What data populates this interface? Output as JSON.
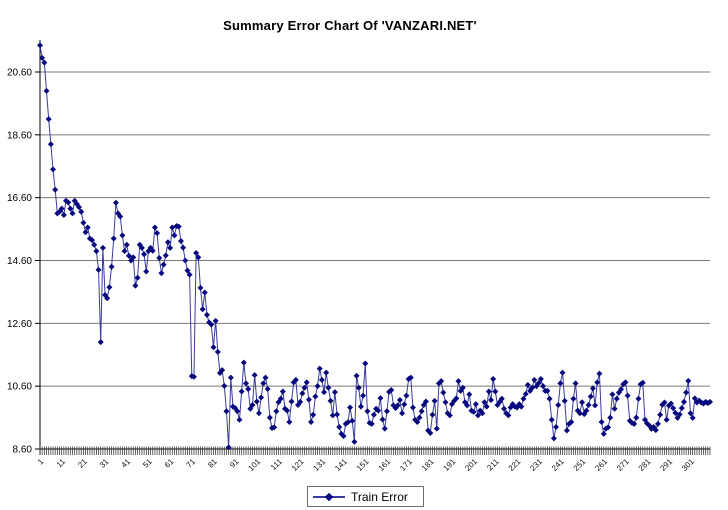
{
  "colors": {
    "background": "#ffffff",
    "series_line": "#3b3b9e",
    "series_marker": "#08087e",
    "gridline": "#7a7a7a",
    "axis": "#000000",
    "tick": "#333333",
    "text": "#000000",
    "legend_border": "#6e6e6e"
  },
  "chart_data": {
    "type": "line",
    "title": "Summary Error Chart Of 'VANZARI.NET'",
    "xlabel": "",
    "ylabel": "",
    "x_start": 1,
    "x_end": 310,
    "x_label_interval": 10,
    "x_labeled_ticks": [
      "1",
      "11",
      "21",
      "31",
      "41",
      "51",
      "61",
      "71",
      "81",
      "91",
      "101",
      "111",
      "121",
      "131",
      "141",
      "151",
      "161",
      "171",
      "181",
      "191",
      "201",
      "211",
      "221",
      "231",
      "241",
      "251",
      "261",
      "271",
      "281",
      "291",
      "301"
    ],
    "ylim": [
      8.6,
      21.6
    ],
    "y_gridlines": [
      8.6,
      10.6,
      12.6,
      14.6,
      16.6,
      18.6,
      20.6
    ],
    "grid": "horizontal-only",
    "legend_position": "bottom-center",
    "series": [
      {
        "name": "Train Error",
        "marker": "diamond",
        "line_color": "#3b3b9e",
        "marker_color": "#08087e",
        "values": [
          21.45,
          21.05,
          20.9,
          20.0,
          19.1,
          18.3,
          17.5,
          16.85,
          16.1,
          16.15,
          16.25,
          16.05,
          16.5,
          16.45,
          16.25,
          16.1,
          16.5,
          16.4,
          16.3,
          16.15,
          15.8,
          15.5,
          15.65,
          15.3,
          15.25,
          15.1,
          14.9,
          14.3,
          12.0,
          15.0,
          13.5,
          13.4,
          13.75,
          14.4,
          15.3,
          16.44,
          16.1,
          16.0,
          15.4,
          14.9,
          15.1,
          14.75,
          14.6,
          14.7,
          13.8,
          14.05,
          15.1,
          15.0,
          14.8,
          14.25,
          14.9,
          15.0,
          14.91,
          15.65,
          15.47,
          14.68,
          14.2,
          14.47,
          14.76,
          15.18,
          15.0,
          15.65,
          15.4,
          15.7,
          15.68,
          15.22,
          15.01,
          14.6,
          14.28,
          14.15,
          10.92,
          10.9,
          14.84,
          14.7,
          13.73,
          13.05,
          13.58,
          12.87,
          12.63,
          12.56,
          11.84,
          12.68,
          11.69,
          11.02,
          11.11,
          10.61,
          9.8,
          8.65,
          10.87,
          9.95,
          9.9,
          9.8,
          9.53,
          10.43,
          11.35,
          10.69,
          10.51,
          9.88,
          10.0,
          10.95,
          10.11,
          9.74,
          10.24,
          10.69,
          10.87,
          10.51,
          9.6,
          9.27,
          9.29,
          9.8,
          10.09,
          10.2,
          10.43,
          9.88,
          9.82,
          9.46,
          10.11,
          10.72,
          10.8,
          10.0,
          10.1,
          10.37,
          10.55,
          10.72,
          10.17,
          9.46,
          9.69,
          10.27,
          10.6,
          11.16,
          10.8,
          10.41,
          11.03,
          10.55,
          10.13,
          9.67,
          10.41,
          9.7,
          9.3,
          9.08,
          9.01,
          9.4,
          9.45,
          9.92,
          9.5,
          8.83,
          10.93,
          10.55,
          9.95,
          10.3,
          11.32,
          9.8,
          9.43,
          9.4,
          9.69,
          9.88,
          9.82,
          10.22,
          9.54,
          9.25,
          9.8,
          10.42,
          10.48,
          9.99,
          9.9,
          9.99,
          10.16,
          9.74,
          10.02,
          10.3,
          10.83,
          10.87,
          9.92,
          9.53,
          9.46,
          9.6,
          9.8,
          10.0,
          10.11,
          9.19,
          9.11,
          9.69,
          10.13,
          9.25,
          10.69,
          10.76,
          10.4,
          10.09,
          9.74,
          9.67,
          10.03,
          10.13,
          10.21,
          10.76,
          10.45,
          10.55,
          10.09,
          9.99,
          10.34,
          9.82,
          9.78,
          10.03,
          9.67,
          9.82,
          9.74,
          10.09,
          9.95,
          10.43,
          10.16,
          10.83,
          10.43,
          10.0,
          10.1,
          10.2,
          9.88,
          9.74,
          9.67,
          9.92,
          10.03,
          9.95,
          9.92,
          10.03,
          9.95,
          10.2,
          10.35,
          10.64,
          10.45,
          10.55,
          10.8,
          10.6,
          10.7,
          10.83,
          10.6,
          10.45,
          10.45,
          10.2,
          9.53,
          8.94,
          9.3,
          10.0,
          10.69,
          11.03,
          10.13,
          9.19,
          9.4,
          9.46,
          10.2,
          10.69,
          9.82,
          9.74,
          10.09,
          9.71,
          9.82,
          10.0,
          10.27,
          10.53,
          9.99,
          10.72,
          11.0,
          9.46,
          9.08,
          9.25,
          9.29,
          9.6,
          10.34,
          9.88,
          10.2,
          10.4,
          10.5,
          10.66,
          10.72,
          10.3,
          9.5,
          9.43,
          9.4,
          9.6,
          10.2,
          10.66,
          10.71,
          9.53,
          9.41,
          9.35,
          9.24,
          9.3,
          9.2,
          9.4,
          9.69,
          10.01,
          10.08,
          9.53,
          9.98,
          10.05,
          9.9,
          9.75,
          9.59,
          9.7,
          9.9,
          10.1,
          10.4,
          10.77,
          9.74,
          9.59,
          10.21,
          10.08,
          10.14,
          10.08,
          10.05,
          10.1,
          10.06,
          10.1
        ]
      }
    ]
  }
}
